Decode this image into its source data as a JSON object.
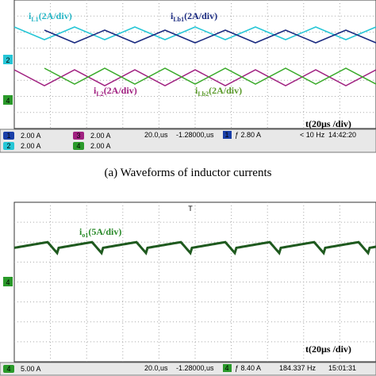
{
  "panel_a": {
    "labels": [
      {
        "symbol": "i",
        "subscript": "L1",
        "scale": "(2A/div)"
      },
      {
        "symbol": "i",
        "subscript": "Lb1",
        "scale": "(2A/div)"
      },
      {
        "symbol": "i",
        "subscript": "L2",
        "scale": "(2A/div)"
      },
      {
        "symbol": "i",
        "subscript": "Lb2",
        "scale": "(2A/div)"
      }
    ],
    "markers": [
      "2",
      "4"
    ],
    "time_label": "t(20µs /div)",
    "status": {
      "channels": [
        [
          "1",
          "2.00 A"
        ],
        [
          "2",
          "2.00 A"
        ],
        [
          "3",
          "2.00 A"
        ],
        [
          "4",
          "2.00 A"
        ]
      ],
      "timebase": "20.0,us",
      "delay": "-1.28000,us",
      "trigger_ch": "1",
      "trigger": "ƒ 2.80 A",
      "freq": "< 10 Hz",
      "time": "14:42:20"
    }
  },
  "caption": "(a) Waveforms of inductor currents",
  "panel_b": {
    "labels": [
      {
        "symbol": "i",
        "subscript": "o1",
        "scale": "(5A/div)"
      }
    ],
    "markers": [
      "4"
    ],
    "trigger_marker": "T",
    "time_label": "t(20µs /div)",
    "status": {
      "channels": [
        [
          "4",
          "5.00 A"
        ]
      ],
      "timebase": "20.0,us",
      "delay": "-1.28000,us",
      "trigger_ch": "4",
      "trigger": "ƒ 8.40 A",
      "freq": "184.337 Hz",
      "time": "15:01:31"
    }
  }
}
